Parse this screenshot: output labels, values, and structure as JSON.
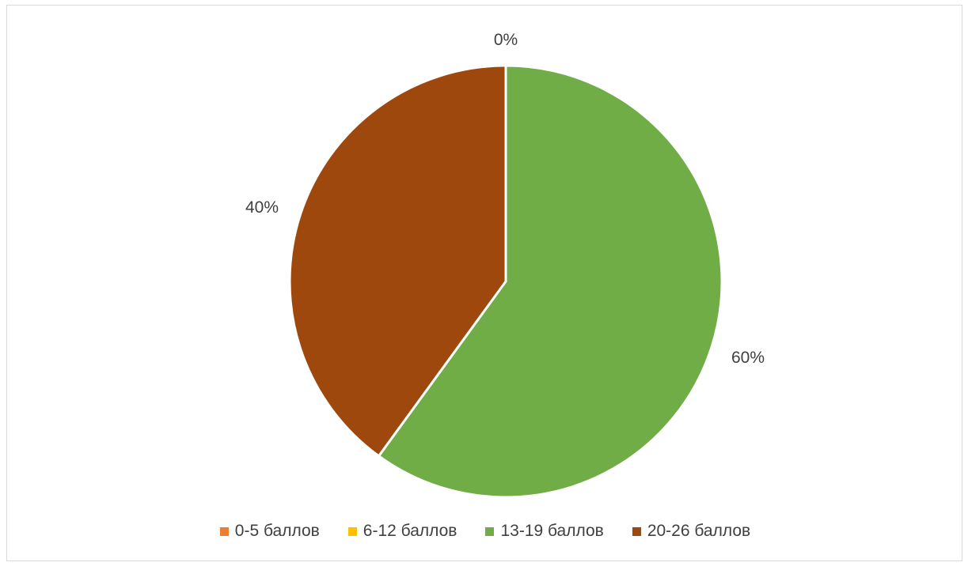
{
  "chart_data": {
    "type": "pie",
    "categories": [
      "0-5 баллов",
      "6-12 баллов",
      "13-19 баллов",
      "20-26 баллов"
    ],
    "values": [
      0,
      0,
      60,
      40
    ],
    "labels": [
      "0%",
      "",
      "60%",
      "40%"
    ],
    "colors": [
      "#ED7D31",
      "#FFC000",
      "#70AD47",
      "#9E480E"
    ],
    "title": "",
    "legend_position": "bottom"
  }
}
